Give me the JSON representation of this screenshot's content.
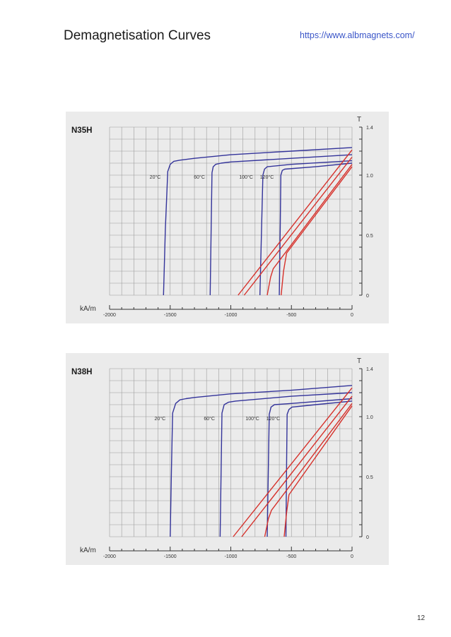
{
  "header": {
    "title": "Demagnetisation Curves",
    "url": "https://www.albmagnets.com/"
  },
  "footer": {
    "page_number": "12"
  },
  "colors": {
    "blue_curve": "#33339a",
    "red_curve": "#d6312b",
    "panel_bg": "#ebebeb",
    "grid": "#9c9c9c"
  },
  "chart_data": [
    {
      "type": "line",
      "title": "N35H",
      "xlabel": "kA/m",
      "ylabel": "T",
      "xlim": [
        -2000,
        0
      ],
      "ylim": [
        0,
        1.4
      ],
      "x_ticks": [
        "-2000",
        "-1500",
        "-1000",
        "-500",
        "0"
      ],
      "y_ticks": [
        "0",
        "0.5",
        "1.0",
        "1.4"
      ],
      "grid": true,
      "temperatures": [
        "20°C",
        "60°C",
        "100°C",
        "120°C"
      ],
      "series": [
        {
          "name": "20°C",
          "kind": "J",
          "x": [
            -1555,
            -1540,
            -1520,
            -1500,
            -1470,
            -1420,
            -1300,
            -1000,
            -500,
            0
          ],
          "y": [
            0,
            0.55,
            1.03,
            1.09,
            1.115,
            1.125,
            1.14,
            1.17,
            1.2,
            1.23
          ]
        },
        {
          "name": "60°C",
          "kind": "J",
          "x": [
            -1170,
            -1162,
            -1155,
            -1145,
            -1125,
            -1080,
            -1000,
            -500,
            0
          ],
          "y": [
            0,
            0.55,
            1.02,
            1.07,
            1.09,
            1.1,
            1.11,
            1.14,
            1.17
          ]
        },
        {
          "name": "100°C",
          "kind": "J",
          "x": [
            -760,
            -745,
            -735,
            -722,
            -700,
            -500,
            0
          ],
          "y": [
            0,
            0.6,
            1.0,
            1.05,
            1.07,
            1.09,
            1.12
          ]
        },
        {
          "name": "120°C",
          "kind": "J",
          "x": [
            -600,
            -592,
            -587,
            -575,
            -555,
            -300,
            0
          ],
          "y": [
            0,
            0.6,
            1.0,
            1.04,
            1.05,
            1.07,
            1.1
          ]
        },
        {
          "name": "20°C",
          "kind": "B",
          "x": [
            -940,
            0
          ],
          "y": [
            0,
            1.21
          ]
        },
        {
          "name": "60°C",
          "kind": "B",
          "x": [
            -890,
            0
          ],
          "y": [
            0,
            1.15
          ]
        },
        {
          "name": "100°C",
          "kind": "B",
          "x": [
            -700,
            -672,
            -650,
            0
          ],
          "y": [
            0,
            0.15,
            0.22,
            1.09
          ]
        },
        {
          "name": "120°C",
          "kind": "B",
          "x": [
            -585,
            -565,
            -540,
            0
          ],
          "y": [
            0,
            0.2,
            0.35,
            1.07
          ]
        }
      ]
    },
    {
      "type": "line",
      "title": "N38H",
      "xlabel": "kA/m",
      "ylabel": "T",
      "xlim": [
        -2000,
        0
      ],
      "ylim": [
        0,
        1.4
      ],
      "x_ticks": [
        "-2000",
        "-1500",
        "-1000",
        "-500",
        "0"
      ],
      "y_ticks": [
        "0",
        "0.5",
        "1.0",
        "1.4"
      ],
      "grid": true,
      "temperatures": [
        "20°C",
        "60°C",
        "100°C",
        "120°C"
      ],
      "series": [
        {
          "name": "20°C",
          "kind": "J",
          "x": [
            -1500,
            -1490,
            -1480,
            -1455,
            -1420,
            -1370,
            -1300,
            -1000,
            -500,
            0
          ],
          "y": [
            0,
            0.55,
            1.03,
            1.11,
            1.14,
            1.15,
            1.16,
            1.19,
            1.22,
            1.26
          ]
        },
        {
          "name": "60°C",
          "kind": "J",
          "x": [
            -1088,
            -1080,
            -1073,
            -1055,
            -1020,
            -960,
            -500,
            0
          ],
          "y": [
            0,
            0.55,
            1.03,
            1.1,
            1.12,
            1.13,
            1.17,
            1.2
          ]
        },
        {
          "name": "100°C",
          "kind": "J",
          "x": [
            -700,
            -690,
            -683,
            -668,
            -640,
            -500,
            0
          ],
          "y": [
            0,
            0.6,
            1.02,
            1.08,
            1.1,
            1.11,
            1.15
          ]
        },
        {
          "name": "120°C",
          "kind": "J",
          "x": [
            -545,
            -540,
            -535,
            -520,
            -495,
            -300,
            0
          ],
          "y": [
            0,
            0.6,
            1.02,
            1.06,
            1.08,
            1.1,
            1.13
          ]
        },
        {
          "name": "20°C",
          "kind": "B",
          "x": [
            -980,
            0
          ],
          "y": [
            0,
            1.24
          ]
        },
        {
          "name": "60°C",
          "kind": "B",
          "x": [
            -910,
            0
          ],
          "y": [
            0,
            1.17
          ]
        },
        {
          "name": "100°C",
          "kind": "B",
          "x": [
            -720,
            -690,
            -665,
            0
          ],
          "y": [
            0,
            0.15,
            0.22,
            1.11
          ]
        },
        {
          "name": "120°C",
          "kind": "B",
          "x": [
            -560,
            -540,
            -520,
            0
          ],
          "y": [
            0,
            0.2,
            0.35,
            1.09
          ]
        }
      ]
    }
  ]
}
